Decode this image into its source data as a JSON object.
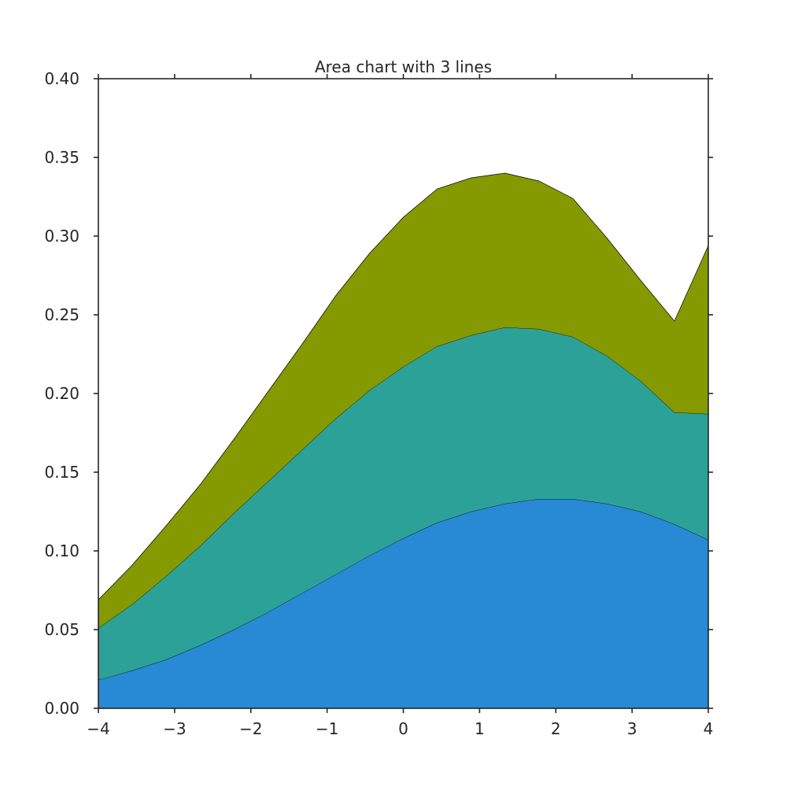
{
  "chart_data": {
    "type": "area",
    "stacked": true,
    "title": "Area chart with 3 lines",
    "xlabel": "",
    "ylabel": "",
    "xlim": [
      -4,
      4
    ],
    "ylim": [
      0,
      0.4
    ],
    "x_ticks": [
      -4,
      -3,
      -2,
      -1,
      0,
      1,
      2,
      3,
      4
    ],
    "x_tick_labels": [
      "−4",
      "−3",
      "−2",
      "−1",
      "0",
      "1",
      "2",
      "3",
      "4"
    ],
    "y_ticks": [
      0,
      0.05,
      0.1,
      0.15,
      0.2,
      0.25,
      0.3,
      0.35,
      0.4
    ],
    "y_tick_labels": [
      "0.00",
      "0.05",
      "0.10",
      "0.15",
      "0.20",
      "0.25",
      "0.30",
      "0.35",
      "0.40"
    ],
    "grid": false,
    "legend": "none",
    "x": [
      -4.0,
      -3.556,
      -3.111,
      -2.667,
      -2.222,
      -1.778,
      -1.333,
      -0.889,
      -0.444,
      0.0,
      0.444,
      0.889,
      1.333,
      1.778,
      2.222,
      2.667,
      3.111,
      3.556,
      4.0
    ],
    "series": [
      {
        "color": "#2889d4",
        "values": [
          0.018,
          0.024,
          0.031,
          0.04,
          0.05,
          0.061,
          0.073,
          0.085,
          0.097,
          0.108,
          0.118,
          0.125,
          0.13,
          0.133,
          0.133,
          0.13,
          0.125,
          0.117,
          0.107
        ]
      },
      {
        "color": "#2ca198",
        "values": [
          0.033,
          0.042,
          0.053,
          0.063,
          0.074,
          0.083,
          0.091,
          0.099,
          0.105,
          0.109,
          0.112,
          0.112,
          0.112,
          0.108,
          0.103,
          0.094,
          0.083,
          0.071,
          0.08
        ]
      },
      {
        "color": "#859900",
        "values": [
          0.018,
          0.025,
          0.032,
          0.039,
          0.047,
          0.057,
          0.067,
          0.078,
          0.087,
          0.095,
          0.1,
          0.1,
          0.098,
          0.094,
          0.088,
          0.075,
          0.064,
          0.058,
          0.107
        ]
      }
    ]
  }
}
